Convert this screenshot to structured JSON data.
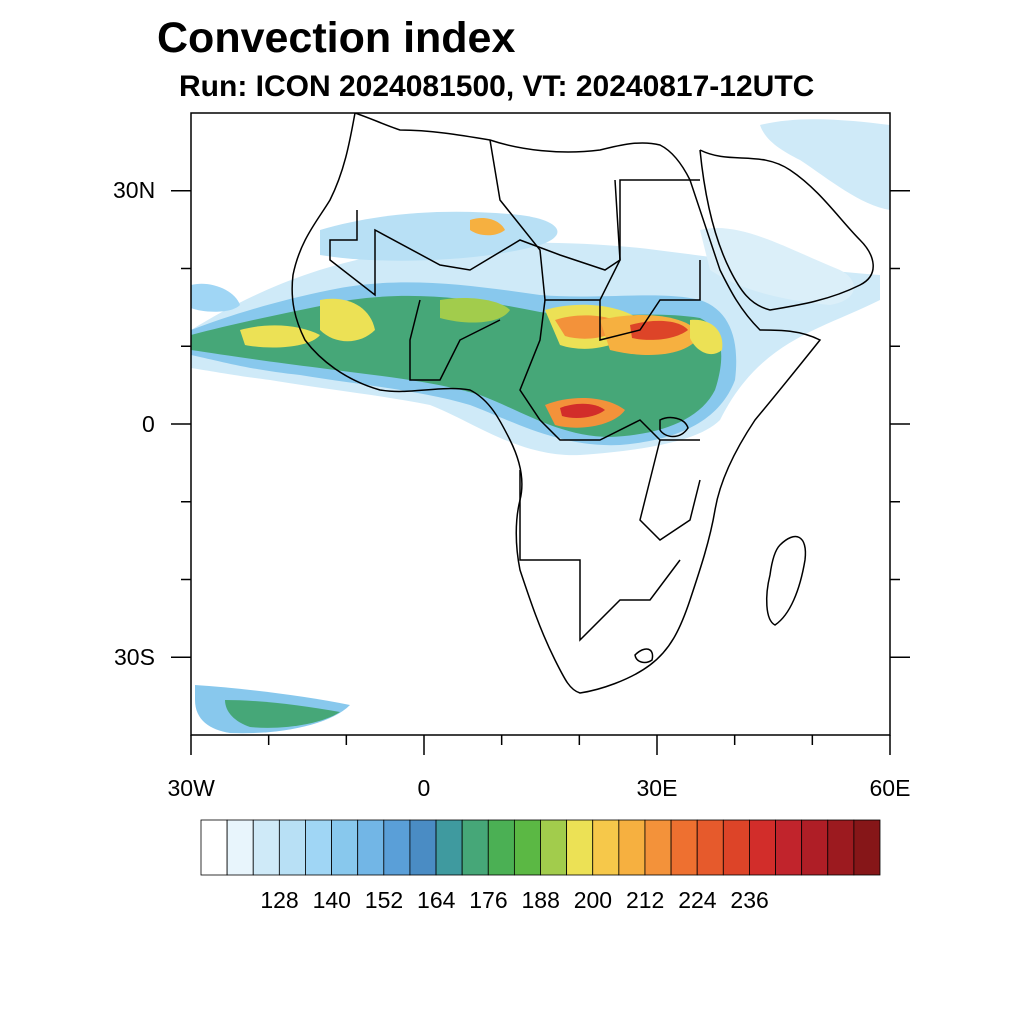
{
  "title": "Convection index",
  "subtitle": "Run: ICON 2024081500,  VT: 20240817-12UTC",
  "map": {
    "region": "Africa",
    "lon_range": [
      -30,
      60
    ],
    "lat_range": [
      -40,
      40
    ],
    "x_ticks": [
      {
        "value": -30,
        "label": "30W"
      },
      {
        "value": 0,
        "label": "0"
      },
      {
        "value": 30,
        "label": "30E"
      },
      {
        "value": 60,
        "label": "60E"
      }
    ],
    "y_ticks": [
      {
        "value": 30,
        "label": "30N"
      },
      {
        "value": 0,
        "label": "0"
      },
      {
        "value": -30,
        "label": "30S"
      }
    ],
    "minor_x_ticks": [
      -20,
      -10,
      10,
      20,
      40,
      50
    ],
    "minor_y_ticks": [
      20,
      10,
      -10,
      -20
    ]
  },
  "colorbar": {
    "colors": [
      "#ffffff",
      "#e8f5fc",
      "#cfeaf8",
      "#b8e0f5",
      "#a0d6f5",
      "#88c8ed",
      "#72b6e6",
      "#5a9fd8",
      "#4a8cc4",
      "#3f9a9f",
      "#46a778",
      "#4bb054",
      "#5bb844",
      "#a2cc4c",
      "#ece155",
      "#f6c84a",
      "#f6b040",
      "#f3923a",
      "#ee7030",
      "#e65a2c",
      "#dd4428",
      "#d22d2a",
      "#c1242c",
      "#af1e26",
      "#9c1a1f",
      "#861618"
    ],
    "labels": [
      "128",
      "140",
      "152",
      "164",
      "176",
      "188",
      "200",
      "212",
      "224",
      "236"
    ]
  }
}
